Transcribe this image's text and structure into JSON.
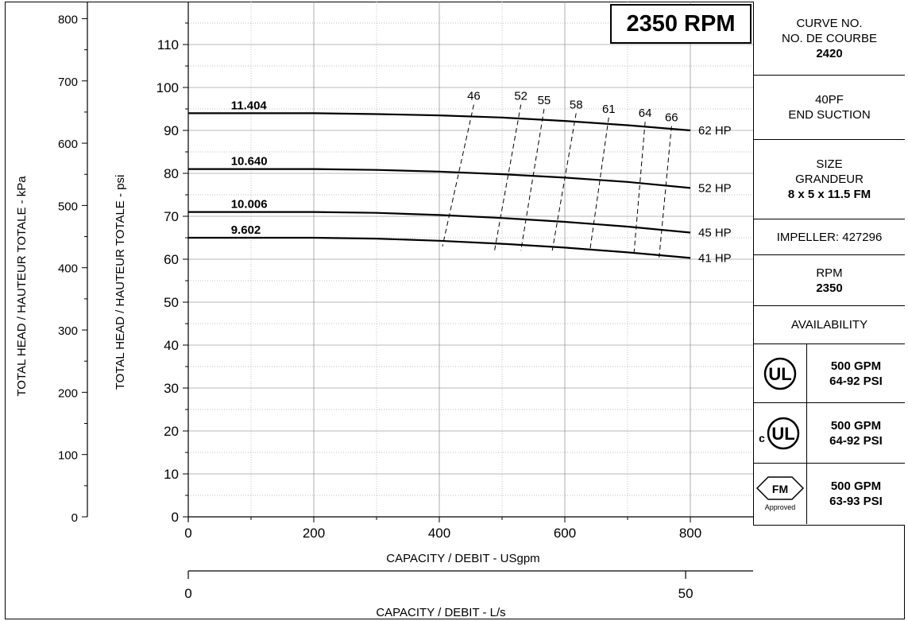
{
  "rpm_box": "2350 RPM",
  "info": {
    "curve_no_label": "CURVE NO.",
    "curve_no_label_fr": "NO. DE COURBE",
    "curve_no": "2420",
    "model": "40PF",
    "model_type": "END SUCTION",
    "size_label": "SIZE",
    "size_label_fr": "GRANDEUR",
    "size": "8 x 5 x 11.5 FM",
    "impeller": "IMPELLER: 427296",
    "rpm_label": "RPM",
    "rpm": "2350",
    "availability": "AVAILABILITY",
    "certs": [
      {
        "icon": "ul-listed-icon",
        "mark": "UL",
        "line1": "500 GPM",
        "line2": "64-92 PSI"
      },
      {
        "icon": "cul-listed-icon",
        "mark": "UL",
        "prefix": "c",
        "line1": "500 GPM",
        "line2": "64-92 PSI"
      },
      {
        "icon": "fm-approved-icon",
        "mark": "FM",
        "sub": "Approved",
        "line1": "500 GPM",
        "line2": "63-93 PSI"
      }
    ]
  },
  "chart_data": {
    "type": "line",
    "xlabel": "CAPACITY / DEBIT - USgpm",
    "x2label": "CAPACITY / DEBIT - L/s",
    "ylabel": "TOTAL HEAD / HAUTEUR TOTALE - psi",
    "y2label": "TOTAL HEAD / HAUTEUR TOTALE - kPa",
    "xlim": [
      0,
      900
    ],
    "ylim": [
      0,
      120
    ],
    "x_ticks": [
      0,
      200,
      400,
      600,
      800
    ],
    "y_ticks": [
      0,
      10,
      20,
      30,
      40,
      50,
      60,
      70,
      80,
      90,
      100,
      110
    ],
    "kpa_ticks": [
      0,
      100,
      200,
      300,
      400,
      500,
      600,
      700,
      800
    ],
    "ls_ticks": [
      0,
      50
    ],
    "grid": true,
    "series": [
      {
        "name": "11.404",
        "power": "62 HP",
        "x": [
          0,
          100,
          200,
          300,
          400,
          500,
          600,
          700,
          800
        ],
        "y": [
          94,
          94,
          94,
          93.8,
          93.5,
          93,
          92.2,
          91.2,
          90
        ]
      },
      {
        "name": "10.640",
        "power": "52 HP",
        "x": [
          0,
          100,
          200,
          300,
          400,
          500,
          600,
          700,
          800
        ],
        "y": [
          81,
          81,
          81,
          80.8,
          80.4,
          79.8,
          79,
          78,
          76.6
        ]
      },
      {
        "name": "10.006",
        "power": "45 HP",
        "x": [
          0,
          100,
          200,
          300,
          400,
          500,
          600,
          700,
          800
        ],
        "y": [
          71,
          71,
          71,
          70.8,
          70.3,
          69.6,
          68.7,
          67.6,
          66.2
        ]
      },
      {
        "name": "9.602",
        "power": "41 HP",
        "x": [
          0,
          100,
          200,
          300,
          400,
          500,
          600,
          700,
          800
        ],
        "y": [
          65,
          65,
          65,
          64.8,
          64.3,
          63.6,
          62.7,
          61.6,
          60.3
        ]
      }
    ],
    "efficiency": [
      {
        "label": "46",
        "x": [
          455,
          405
        ],
        "y": [
          96,
          63
        ]
      },
      {
        "label": "52",
        "x": [
          530,
          488
        ],
        "y": [
          96,
          62
        ]
      },
      {
        "label": "55",
        "x": [
          567,
          530
        ],
        "y": [
          95,
          62
        ]
      },
      {
        "label": "58",
        "x": [
          618,
          580
        ],
        "y": [
          94,
          62
        ]
      },
      {
        "label": "61",
        "x": [
          670,
          640
        ],
        "y": [
          93,
          62
        ]
      },
      {
        "label": "64",
        "x": [
          728,
          710
        ],
        "y": [
          92,
          61
        ]
      },
      {
        "label": "66",
        "x": [
          770,
          750
        ],
        "y": [
          91,
          60
        ]
      }
    ]
  }
}
